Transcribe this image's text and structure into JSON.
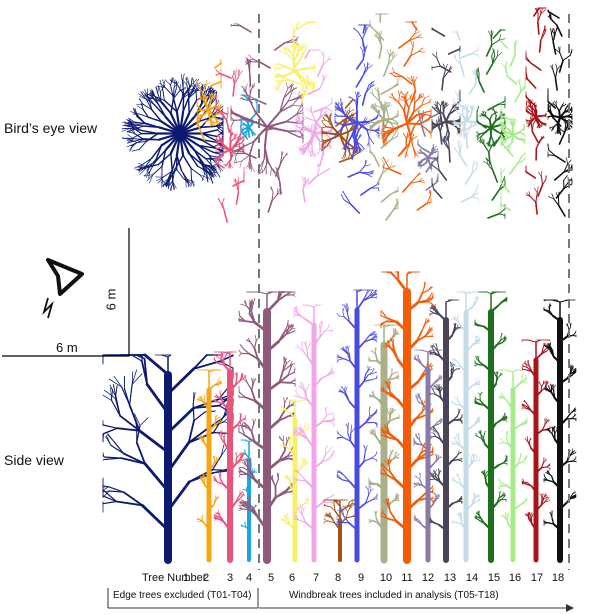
{
  "labels": {
    "birds_eye": "Bird’s eye view",
    "side": "Side view",
    "scale_vertical": "6 m",
    "scale_horizontal": "6 m",
    "tree_number_caption": "Tree Number:",
    "edge_caption": "Edge trees excluded (T01-T04)",
    "windbreak_caption": "Windbreak trees included in analysis (T05-T18)"
  },
  "trees": [
    {
      "id": "1",
      "color": "#0d1a6e"
    },
    {
      "id": "2",
      "color": "#f4a614"
    },
    {
      "id": "3",
      "color": "#e9557a"
    },
    {
      "id": "4",
      "color": "#1aa6e0"
    },
    {
      "id": "5",
      "color": "#8e5a7c"
    },
    {
      "id": "6",
      "color": "#f6f06a"
    },
    {
      "id": "7",
      "color": "#f0a6e8"
    },
    {
      "id": "8",
      "color": "#a0521a"
    },
    {
      "id": "9",
      "color": "#4a4ae0"
    },
    {
      "id": "10",
      "color": "#a9b08a"
    },
    {
      "id": "11",
      "color": "#f25c0a"
    },
    {
      "id": "12",
      "color": "#8a7aa8"
    },
    {
      "id": "13",
      "color": "#4a4458"
    },
    {
      "id": "14",
      "color": "#c4dce8"
    },
    {
      "id": "15",
      "color": "#1e6e1e"
    },
    {
      "id": "16",
      "color": "#a8ec8a"
    },
    {
      "id": "17",
      "color": "#a8141a"
    },
    {
      "id": "18",
      "color": "#111111"
    }
  ]
}
